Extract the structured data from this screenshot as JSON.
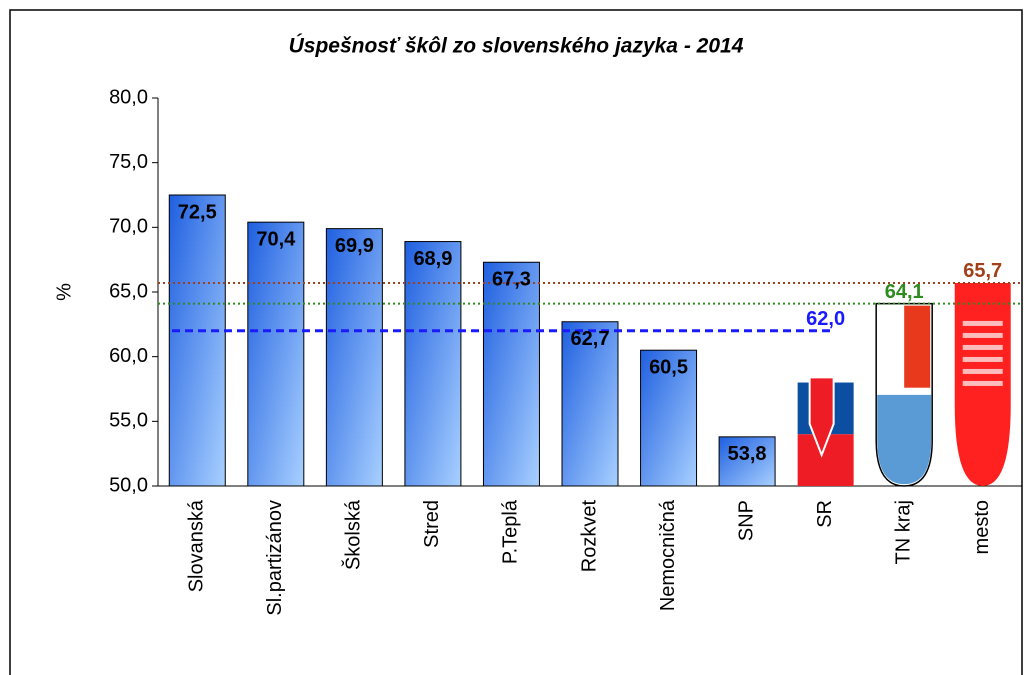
{
  "chart_data": {
    "type": "bar",
    "title": "Úspešnosť škôl zo slovenského jazyka - 2014",
    "y_label": "%",
    "categories": [
      "Slovanská",
      "Sl.partizánov",
      "Školská",
      "Stred",
      "P.Teplá",
      "Rozkvet",
      "Nemocničná",
      "SNP",
      "SR",
      "TN kraj",
      "mesto"
    ],
    "values": [
      72.5,
      70.4,
      69.9,
      68.9,
      67.3,
      62.7,
      60.5,
      53.8,
      62.0,
      64.1,
      65.7
    ],
    "value_labels": [
      "72,5",
      "70,4",
      "69,9",
      "68,9",
      "67,3",
      "62,7",
      "60,5",
      "53,8",
      "62,0",
      "64,1",
      "65,7"
    ],
    "label_colors": [
      "#000000",
      "#000000",
      "#000000",
      "#000000",
      "#000000",
      "#000000",
      "#000000",
      "#000000",
      "#1a1aff",
      "#2e8b1e",
      "#a0401a"
    ],
    "color": "#3a78e8",
    "ylim": [
      50,
      80
    ],
    "yticks": [
      {
        "value": 50,
        "label": "50,0"
      },
      {
        "value": 55,
        "label": "55,0"
      },
      {
        "value": 60,
        "label": "60,0"
      },
      {
        "value": 65,
        "label": "65,0"
      },
      {
        "value": 70,
        "label": "70,0"
      },
      {
        "value": 75,
        "label": "75,0"
      },
      {
        "value": 80,
        "label": "80,0"
      }
    ]
  }
}
